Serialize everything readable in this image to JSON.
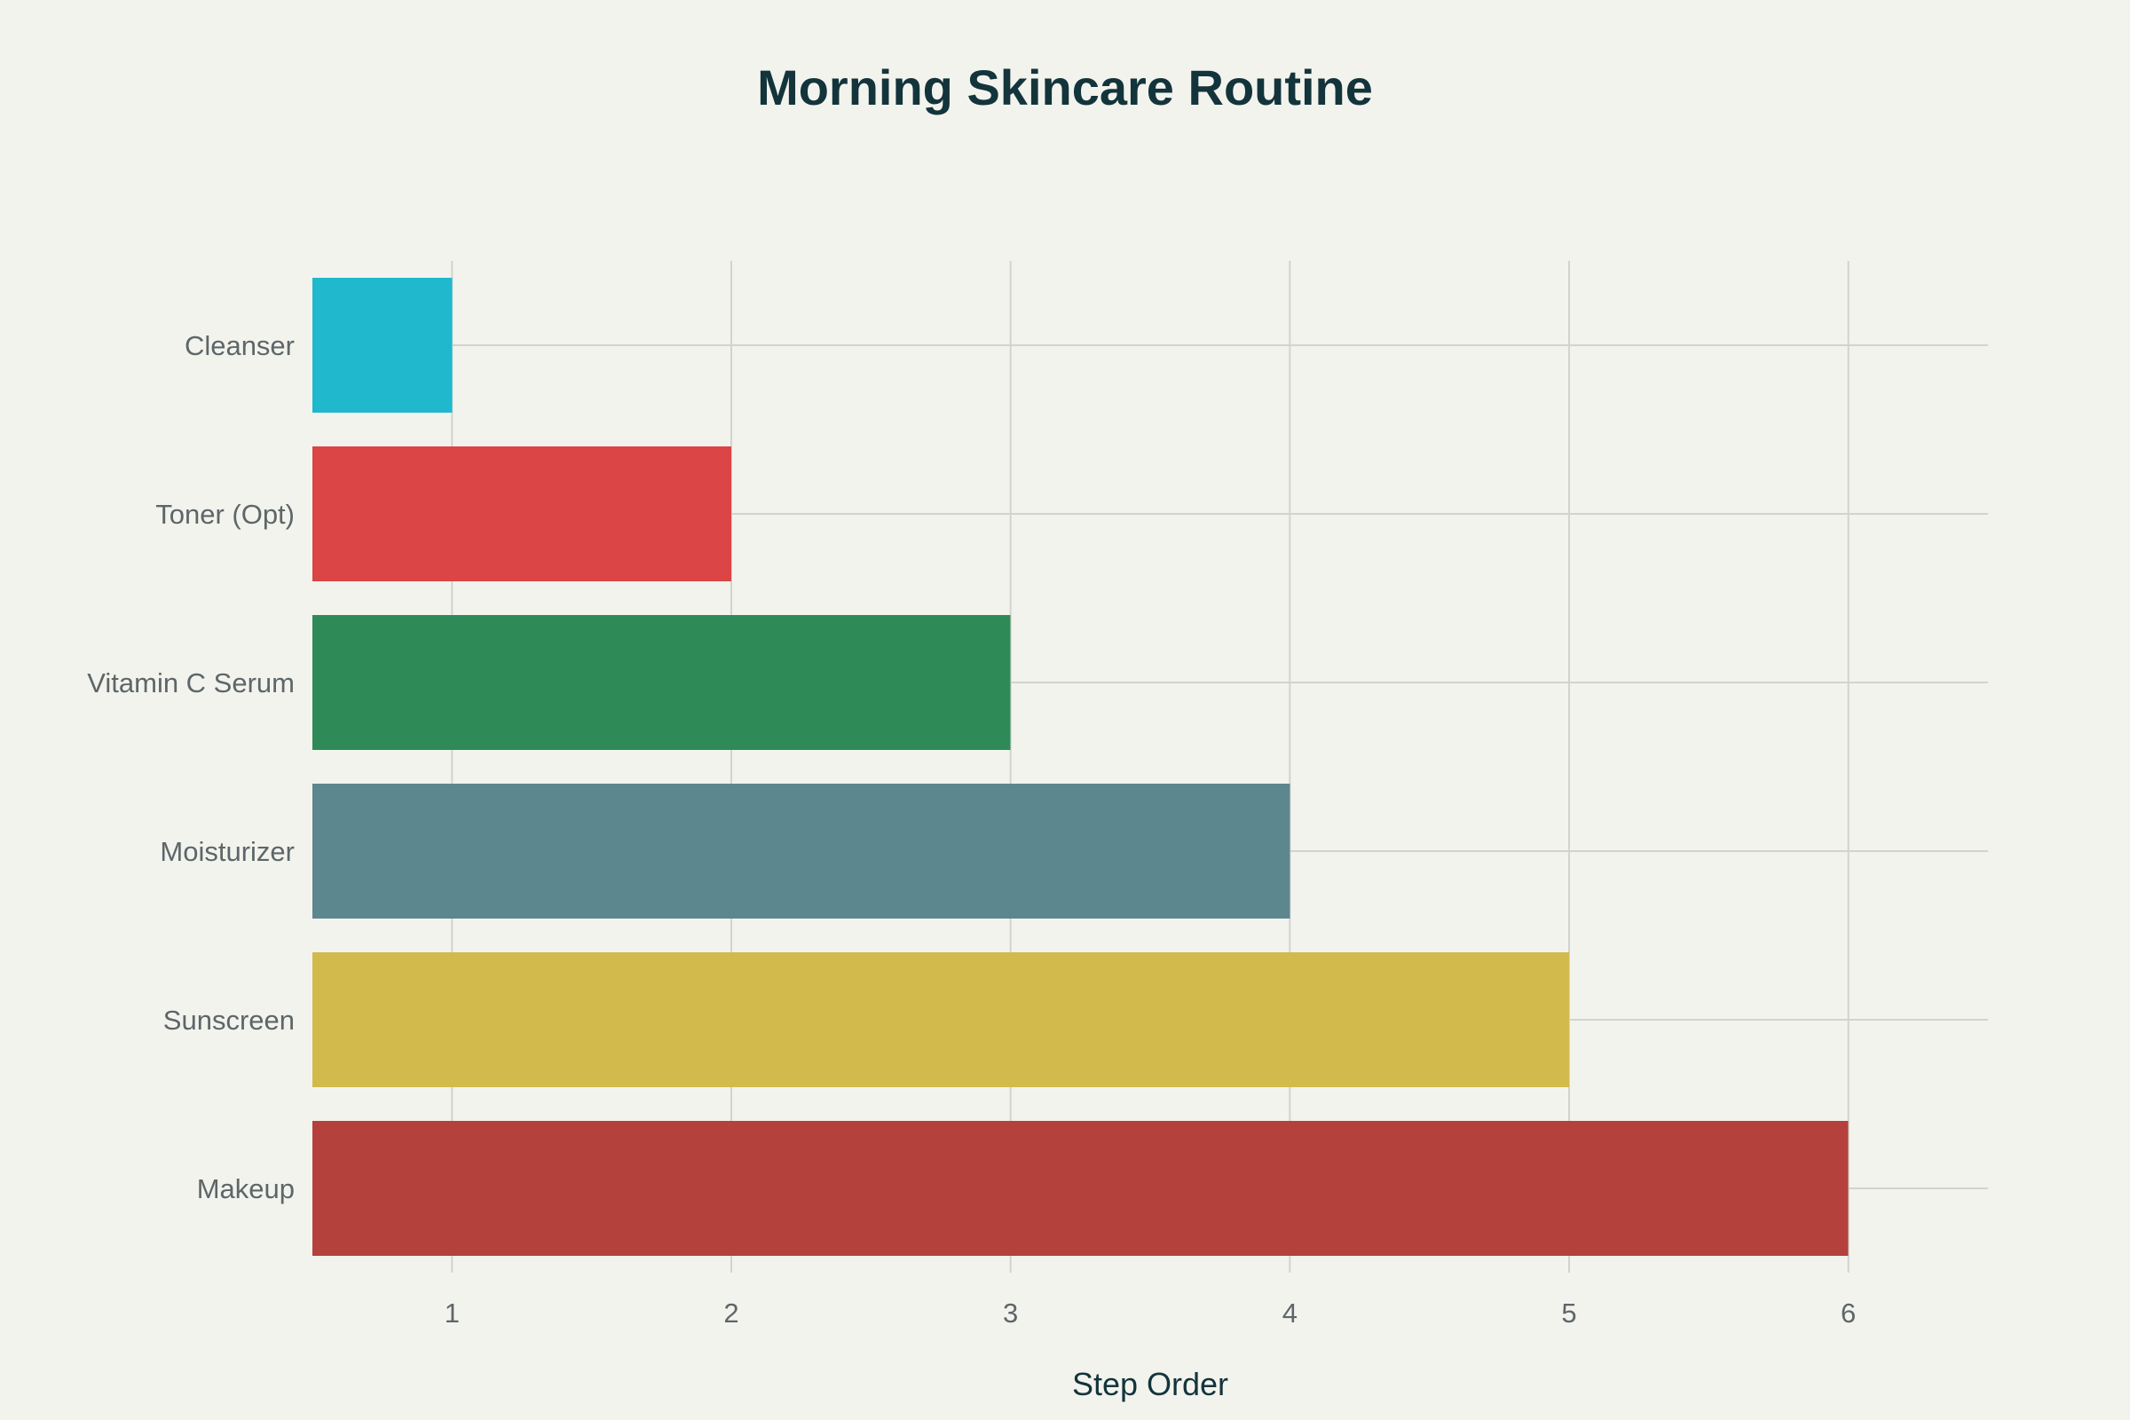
{
  "chart_data": {
    "type": "bar",
    "orientation": "horizontal",
    "title": "Morning Skincare Routine",
    "xlabel": "Step Order",
    "ylabel": "",
    "categories": [
      "Cleanser",
      "Toner (Opt)",
      "Vitamin C Serum",
      "Moisturizer",
      "Sunscreen",
      "Makeup"
    ],
    "values": [
      1,
      2,
      3,
      4,
      5,
      6
    ],
    "colors": [
      "#1fb8cd",
      "#db4545",
      "#2e8b57",
      "#5d878f",
      "#d2ba4c",
      "#b4413c"
    ],
    "xlim": [
      0.5,
      6.5
    ],
    "xticks": [
      1,
      2,
      3,
      4,
      5,
      6
    ],
    "grid": true,
    "legend": "none"
  }
}
